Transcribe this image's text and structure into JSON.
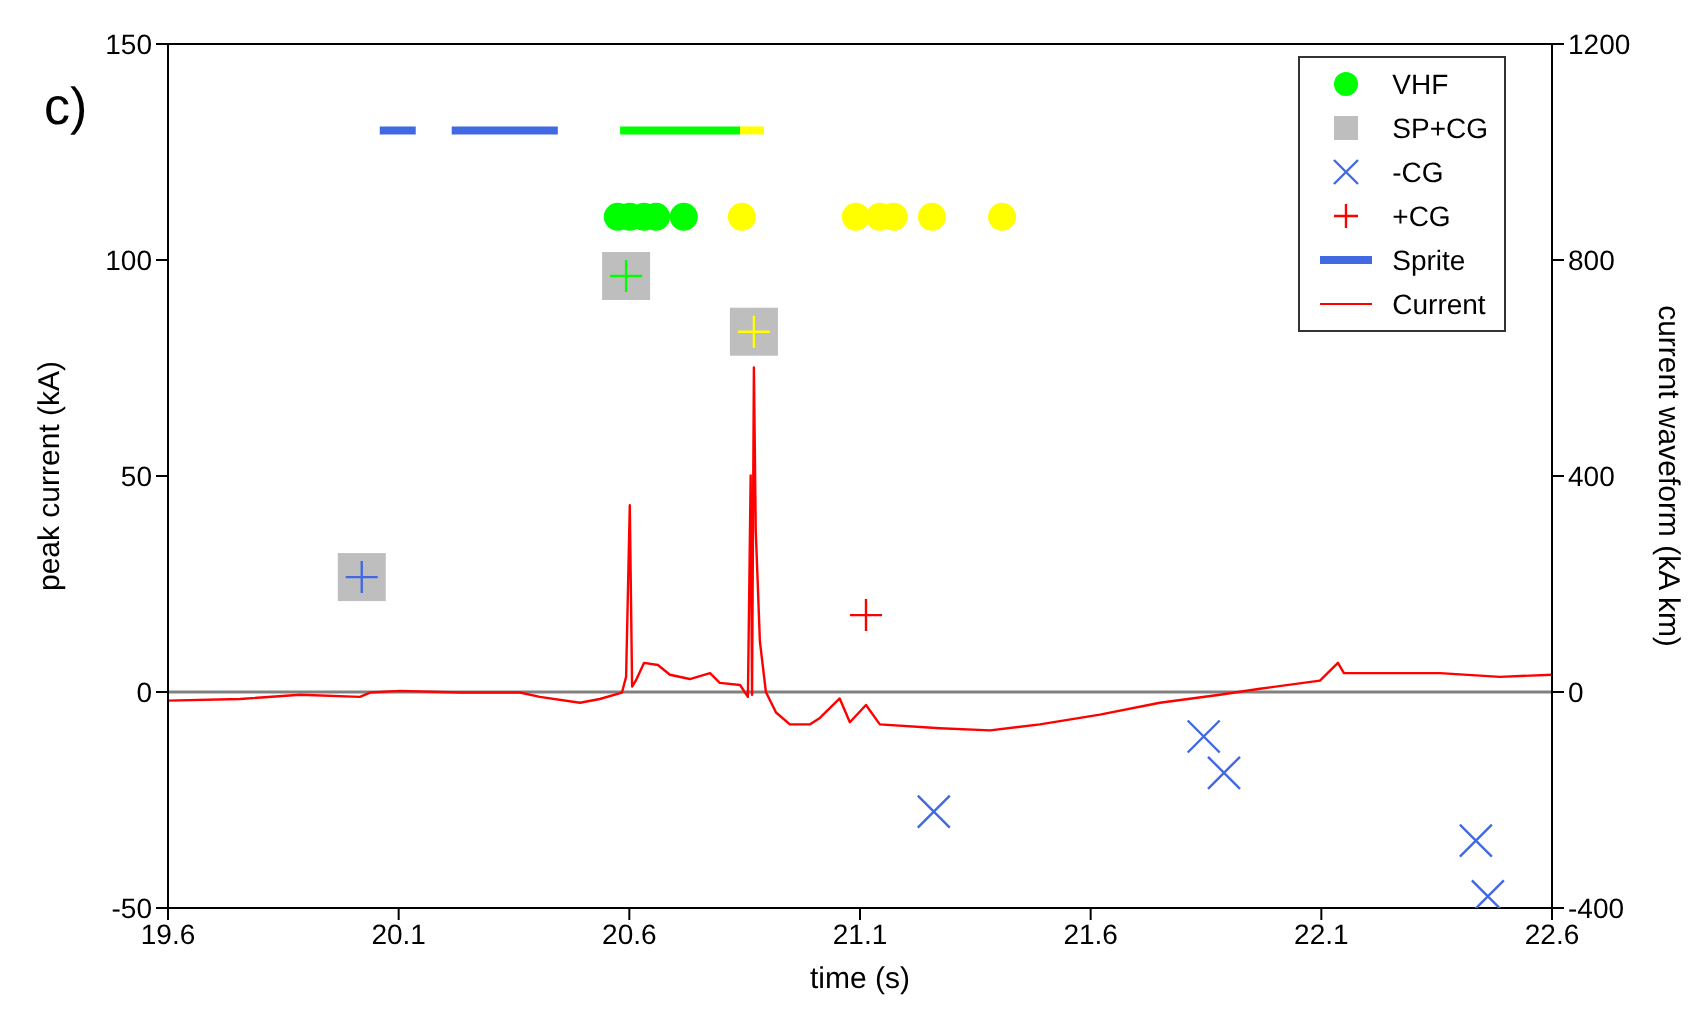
{
  "chart_data": {
    "type": "scatter",
    "xlabel": "time (s)",
    "ylabel": "peak current (kA)",
    "y2label": "current waveform (kA km)",
    "annotations": [
      "c)"
    ],
    "xlim": [
      19.6,
      22.6
    ],
    "xticks": [
      19.6,
      20.1,
      20.6,
      21.1,
      21.6,
      22.1,
      22.6
    ],
    "ylim": [
      -50,
      150
    ],
    "yticks": [
      -50,
      0,
      50,
      100,
      150
    ],
    "y2lim": [
      -400,
      1200
    ],
    "y2ticks": [
      -400,
      0,
      400,
      800,
      1200
    ],
    "grid": false,
    "legend": "top right",
    "ref_lines": [
      {
        "axis": "y",
        "value": 0,
        "color": "#808080"
      }
    ],
    "series": [
      {
        "name": "VHF",
        "type": "scatter",
        "marker": "circle",
        "color": "#00ff00",
        "x": [
          20.575,
          20.601,
          20.632,
          20.658,
          20.718,
          20.844,
          21.091,
          21.143,
          21.173,
          21.256,
          21.408
        ],
        "values": [
          110,
          110,
          110,
          110,
          110,
          110,
          110,
          110,
          110,
          110,
          110
        ],
        "colors": [
          "#00ff00",
          "#00ff00",
          "#00ff00",
          "#00ff00",
          "#00ff00",
          "#ffff00",
          "#ffff00",
          "#ffff00",
          "#ffff00",
          "#ffff00",
          "#ffff00"
        ]
      },
      {
        "name": "SP+CG",
        "type": "scatter",
        "marker": "square",
        "color": "#bebebe",
        "x": [
          20.02,
          20.593,
          20.87
        ],
        "values": [
          26.6,
          96.3,
          83.4
        ]
      },
      {
        "type": "scatter",
        "marker": "cross",
        "x": [
          20.02,
          20.593,
          20.87
        ],
        "values": [
          26.6,
          96.3,
          83.4
        ],
        "colors": [
          "#4169e1",
          "#00ff00",
          "#ffff00"
        ]
      },
      {
        "name": "-CG",
        "type": "scatter",
        "marker": "x",
        "color": "#4169e1",
        "x": [
          21.26,
          21.845,
          21.889,
          22.435,
          22.461
        ],
        "values": [
          -27.7,
          -10.3,
          -18.7,
          -34.4,
          -47.3
        ]
      },
      {
        "name": "+CG",
        "type": "scatter",
        "marker": "cross",
        "color": "#ff0000",
        "x": [
          21.113
        ],
        "values": [
          17.8
        ]
      },
      {
        "name": "Sprite",
        "type": "line",
        "marker": "none",
        "color": "#4169e1",
        "x": [
          20.059,
          20.137,
          20.176,
          20.215,
          20.445
        ],
        "values": [
          130,
          130,
          null,
          130,
          130
        ]
      },
      {
        "type": "line",
        "marker": "none",
        "color": "#00ff00",
        "x": [
          20.58,
          20.84
        ],
        "values": [
          130,
          130
        ]
      },
      {
        "type": "line",
        "marker": "none",
        "color": "#ffff00",
        "x": [
          20.84,
          20.892
        ],
        "values": [
          130,
          130
        ]
      },
      {
        "name": "Current",
        "type": "line",
        "marker": "none",
        "axis": "y2",
        "color": "#ff0000",
        "x": [
          19.6,
          19.756,
          19.886,
          20.016,
          20.038,
          20.103,
          20.233,
          20.363,
          20.406,
          20.493,
          20.536,
          20.584,
          20.593,
          20.601,
          20.606,
          20.614,
          20.632,
          20.662,
          20.688,
          20.731,
          20.775,
          20.796,
          20.84,
          20.857,
          20.863,
          20.866,
          20.87,
          20.874,
          20.883,
          20.896,
          20.918,
          20.948,
          20.991,
          21.013,
          21.056,
          21.078,
          21.113,
          21.143,
          21.273,
          21.382,
          21.49,
          21.62,
          21.75,
          21.88,
          21.967,
          22.097,
          22.136,
          22.149,
          22.27,
          22.357,
          22.487,
          22.6
        ],
        "values": [
          -16,
          -13,
          -5,
          -9,
          -1,
          2,
          -1,
          -1,
          -9,
          -20,
          -13,
          -1,
          28,
          346,
          10,
          21,
          54,
          50,
          32,
          24,
          35,
          17,
          13,
          -9,
          401,
          -5,
          601,
          300,
          94,
          0,
          -38,
          -60,
          -60,
          -48,
          -12,
          -56,
          -24,
          -60,
          -67,
          -71,
          -60,
          -42,
          -20,
          -5,
          6,
          21,
          54,
          35,
          35,
          35,
          28,
          32
        ]
      }
    ]
  }
}
